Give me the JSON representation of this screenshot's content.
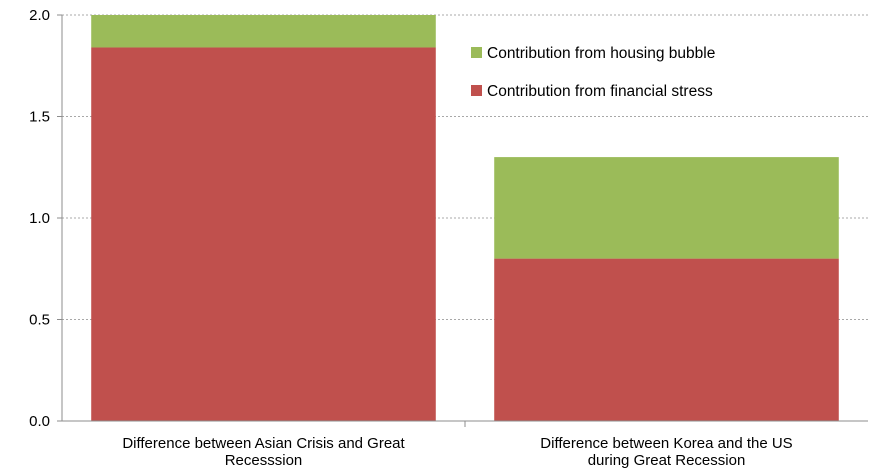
{
  "chart_data": {
    "type": "bar",
    "stacked": true,
    "categories": [
      [
        "Difference between Asian Crisis and Great",
        "Recesssion"
      ],
      [
        "Difference between Korea and the US",
        "during Great Recession"
      ]
    ],
    "series": [
      {
        "name": "Contribution from financial stress",
        "values": [
          1.84,
          0.8
        ],
        "color": "#C0504D"
      },
      {
        "name": "Contribution from housing bubble",
        "values": [
          0.16,
          0.5
        ],
        "color": "#9BBB59"
      }
    ],
    "ylim": [
      0,
      2.0
    ],
    "yticks": [
      "0.0",
      "0.5",
      "1.0",
      "1.5",
      "2.0"
    ],
    "ytick_values": [
      0,
      0.5,
      1.0,
      1.5,
      2.0
    ],
    "grid": true,
    "legend_position": "top-right",
    "legend_order": [
      1,
      0
    ]
  }
}
